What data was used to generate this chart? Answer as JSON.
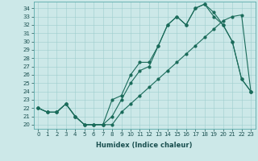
{
  "xlabel": "Humidex (Indice chaleur)",
  "bg_color": "#cce8e8",
  "grid_color": "#9ecece",
  "line_color": "#1a6b5a",
  "xlim": [
    -0.5,
    23.5
  ],
  "ylim": [
    19.5,
    34.8
  ],
  "yticks": [
    20,
    21,
    22,
    23,
    24,
    25,
    26,
    27,
    28,
    29,
    30,
    31,
    32,
    33,
    34
  ],
  "xticks": [
    0,
    1,
    2,
    3,
    4,
    5,
    6,
    7,
    8,
    9,
    10,
    11,
    12,
    13,
    14,
    15,
    16,
    17,
    18,
    19,
    20,
    21,
    22,
    23
  ],
  "line1_x": [
    0,
    1,
    2,
    3,
    4,
    5,
    6,
    7,
    8,
    9,
    10,
    11,
    12,
    13,
    14,
    15,
    16,
    17,
    18,
    19,
    20,
    21,
    22,
    23
  ],
  "line1_y": [
    22.0,
    21.5,
    21.5,
    22.5,
    21.0,
    20.0,
    20.0,
    20.0,
    20.0,
    21.5,
    22.5,
    23.5,
    24.5,
    25.5,
    26.5,
    27.5,
    28.5,
    29.5,
    30.5,
    31.5,
    32.5,
    33.0,
    33.2,
    24.0
  ],
  "line2_x": [
    0,
    1,
    2,
    3,
    4,
    5,
    6,
    7,
    8,
    9,
    10,
    11,
    12,
    13,
    14,
    15,
    16,
    17,
    18,
    19,
    20,
    21,
    22,
    23
  ],
  "line2_y": [
    22.0,
    21.5,
    21.5,
    22.5,
    21.0,
    20.0,
    20.0,
    20.0,
    21.0,
    23.0,
    25.0,
    26.5,
    27.0,
    29.5,
    32.0,
    33.0,
    32.0,
    34.0,
    34.5,
    33.5,
    32.0,
    30.0,
    25.5,
    24.0
  ],
  "line3_x": [
    0,
    1,
    2,
    3,
    4,
    5,
    6,
    7,
    8,
    9,
    10,
    11,
    12,
    13,
    14,
    15,
    16,
    17,
    18,
    19,
    20,
    21,
    22,
    23
  ],
  "line3_y": [
    22.0,
    21.5,
    21.5,
    22.5,
    21.0,
    20.0,
    20.0,
    20.0,
    23.0,
    23.5,
    26.0,
    27.5,
    27.5,
    29.5,
    32.0,
    33.0,
    32.0,
    34.0,
    34.5,
    33.0,
    32.0,
    30.0,
    25.5,
    24.0
  ],
  "spine_color": "#5aabab",
  "tick_color": "#1a5050",
  "xlabel_color": "#1a5050",
  "xlabel_fontsize": 6.0,
  "tick_fontsize": 5.0,
  "marker_size": 2.0,
  "line_width": 0.8
}
